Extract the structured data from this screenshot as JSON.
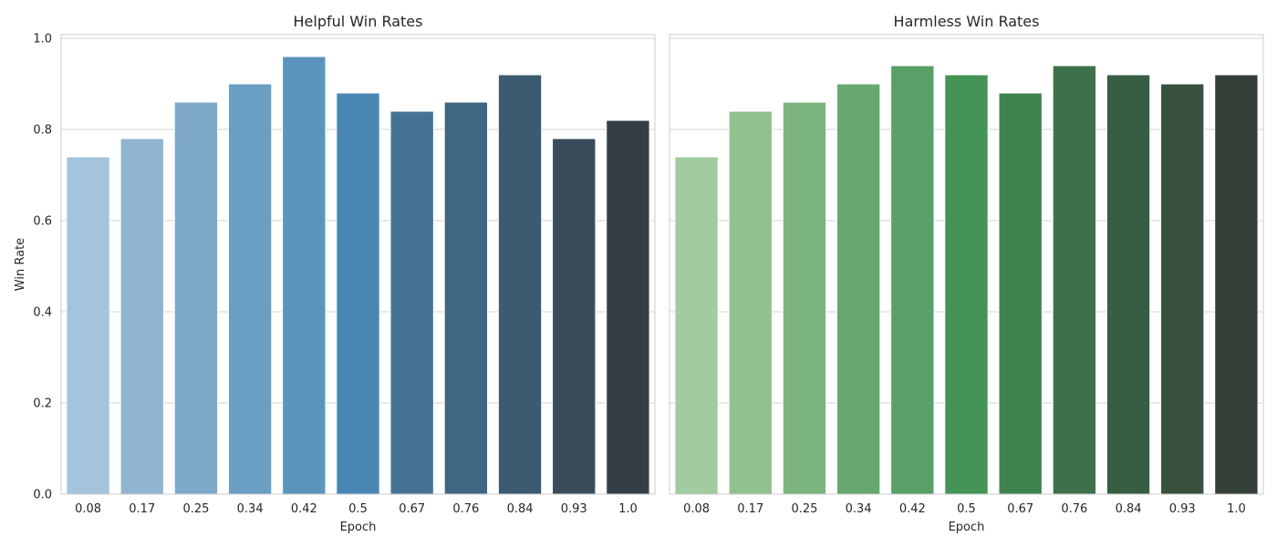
{
  "chart_data": [
    {
      "type": "bar",
      "title": "Helpful Win Rates",
      "xlabel": "Epoch",
      "ylabel": "Win Rate",
      "categories": [
        "0.08",
        "0.17",
        "0.25",
        "0.34",
        "0.42",
        "0.5",
        "0.67",
        "0.76",
        "0.84",
        "0.93",
        "1.0"
      ],
      "values": [
        0.74,
        0.78,
        0.86,
        0.9,
        0.96,
        0.88,
        0.84,
        0.86,
        0.92,
        0.78,
        0.82
      ],
      "colors": [
        "#a3c4dc",
        "#90b5d1",
        "#7da8c8",
        "#6a9ec3",
        "#5b95bd",
        "#4a86b3",
        "#457396",
        "#3f6682",
        "#3c5a70",
        "#3a4c5c",
        "#343e46"
      ],
      "ylim": [
        0,
        1.0
      ],
      "yticks": [
        "0.0",
        "0.2",
        "0.4",
        "0.6",
        "0.8",
        "1.0"
      ],
      "grid": true,
      "palette": "blues"
    },
    {
      "type": "bar",
      "title": "Harmless Win Rates",
      "xlabel": "Epoch",
      "ylabel": "",
      "categories": [
        "0.08",
        "0.17",
        "0.25",
        "0.34",
        "0.42",
        "0.5",
        "0.67",
        "0.76",
        "0.84",
        "0.93",
        "1.0"
      ],
      "values": [
        0.74,
        0.84,
        0.86,
        0.9,
        0.94,
        0.92,
        0.88,
        0.94,
        0.92,
        0.9,
        0.92
      ],
      "colors": [
        "#a1cc9f",
        "#90c18e",
        "#7bb47f",
        "#67a870",
        "#58a068",
        "#439456",
        "#3f8350",
        "#3e714a",
        "#375e42",
        "#39513f",
        "#343f37"
      ],
      "ylim": [
        0,
        1.0
      ],
      "yticks": [
        "0.0",
        "0.2",
        "0.4",
        "0.6",
        "0.8",
        "1.0"
      ],
      "grid": true,
      "palette": "greens"
    }
  ]
}
